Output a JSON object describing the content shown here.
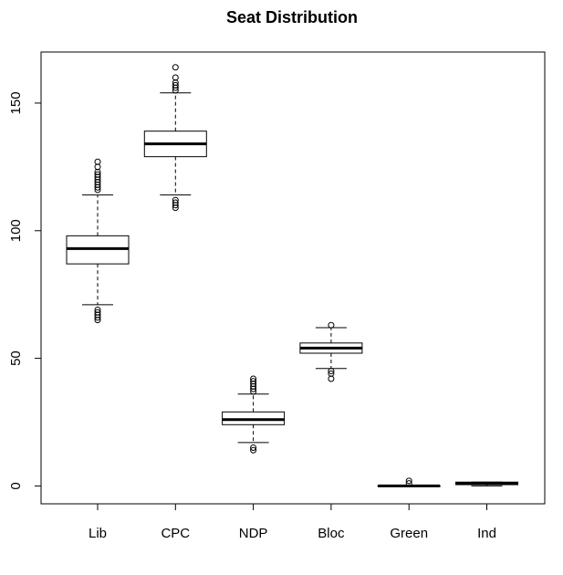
{
  "chart_data": {
    "type": "boxplot",
    "title": "Seat Distribution",
    "xlabel": "",
    "ylabel": "",
    "ylim": [
      -7,
      170
    ],
    "y_ticks": [
      0,
      50,
      100,
      150
    ],
    "grid": false,
    "legend": "none",
    "categories": [
      "Lib",
      "CPC",
      "NDP",
      "Bloc",
      "Green",
      "Ind"
    ],
    "boxes": [
      {
        "whisker_low": 71,
        "q1": 87,
        "median": 93,
        "q3": 98,
        "whisker_high": 114,
        "outliers": [
          65,
          66,
          67,
          68,
          69,
          116,
          117,
          118,
          119,
          120,
          121,
          122,
          123,
          125,
          127
        ]
      },
      {
        "whisker_low": 114,
        "q1": 129,
        "median": 134,
        "q3": 139,
        "whisker_high": 154,
        "outliers": [
          109,
          110,
          111,
          112,
          155,
          156,
          157,
          158,
          160,
          164
        ]
      },
      {
        "whisker_low": 17,
        "q1": 24,
        "median": 26,
        "q3": 29,
        "whisker_high": 36,
        "outliers": [
          14,
          15,
          37,
          38,
          39,
          40,
          41,
          42
        ]
      },
      {
        "whisker_low": 46,
        "q1": 52,
        "median": 54,
        "q3": 56,
        "whisker_high": 62,
        "outliers": [
          42,
          44,
          45,
          63
        ]
      },
      {
        "whisker_low": 0,
        "q1": 0,
        "median": 0,
        "q3": 0,
        "whisker_high": 0,
        "outliers": [
          1,
          2
        ]
      },
      {
        "whisker_low": 0,
        "q1": 0.5,
        "median": 1,
        "q3": 1.5,
        "whisker_high": 1.5,
        "outliers": []
      }
    ],
    "colors": {
      "box_fill": "#ffffff",
      "stroke": "#000000"
    }
  }
}
